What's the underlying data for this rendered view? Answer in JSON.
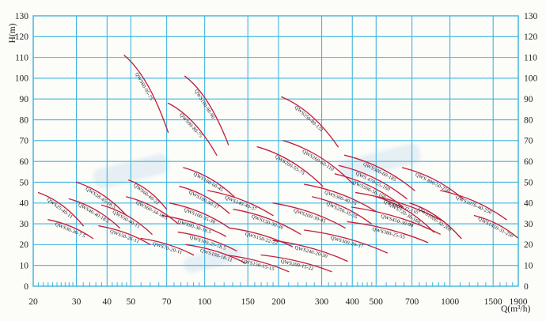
{
  "chart_data": {
    "type": "line",
    "title": "",
    "xlabel": "Q(m³/h)",
    "ylabel": "H(m)",
    "x_scale": "log",
    "xlim": [
      20,
      1900
    ],
    "ylim": [
      0,
      130
    ],
    "y_tick_step": 10,
    "y_axis_labels_both_sides": true,
    "grid": true,
    "x_ticks_major": [
      20,
      30,
      40,
      50,
      70,
      100,
      150,
      200,
      300,
      400,
      500,
      700,
      1000,
      1500,
      1900
    ],
    "x_ticks_minor": [
      21,
      22,
      23,
      24,
      25,
      26,
      27,
      28,
      29,
      32,
      34,
      36,
      38,
      42,
      44,
      46,
      48,
      55,
      60,
      65,
      75,
      80,
      85,
      90,
      95,
      110,
      120,
      130,
      140,
      160,
      170,
      180,
      190,
      220,
      240,
      260,
      280,
      320,
      340,
      360,
      380,
      420,
      440,
      460,
      480,
      550,
      600,
      650,
      750,
      800,
      850,
      900,
      950,
      1100,
      1200,
      1300,
      1400,
      1600,
      1700,
      1800
    ],
    "colors": {
      "grid": "#3fb5dd",
      "curve": "#c2203c",
      "tick_text": "#222222",
      "curve_label_text": "#16161f"
    },
    "series": [
      {
        "name": "QWS25-40-11",
        "q": [
          21,
          32
        ],
        "h": [
          45,
          29
        ]
      },
      {
        "name": "QWS30-30-7.5",
        "q": [
          23,
          35
        ],
        "h": [
          32,
          23
        ]
      },
      {
        "name": "QWS38-45-18.5",
        "q": [
          30,
          48
        ],
        "h": [
          50,
          34
        ]
      },
      {
        "name": "QWS40-40-18.5",
        "q": [
          28,
          45
        ],
        "h": [
          42,
          28
        ]
      },
      {
        "name": "QWS50-40-11",
        "q": [
          38,
          61
        ],
        "h": [
          39,
          25
        ]
      },
      {
        "name": "QWS50-26-11",
        "q": [
          37,
          60
        ],
        "h": [
          29,
          20
        ]
      },
      {
        "name": "QWS60-40-22",
        "q": [
          49,
          70
        ],
        "h": [
          51,
          37
        ]
      },
      {
        "name": "QWS60-34-18.5",
        "q": [
          48,
          78
        ],
        "h": [
          43,
          30
        ]
      },
      {
        "name": "QWS70-20-11",
        "q": [
          55,
          90
        ],
        "h": [
          23,
          15
        ]
      },
      {
        "name": "QWS60-95-75",
        "q": [
          47,
          71
        ],
        "h": [
          111,
          74
        ]
      },
      {
        "name": "QWS100-90-90",
        "q": [
          83,
          125
        ],
        "h": [
          101,
          68
        ]
      },
      {
        "name": "QWS90-80-75",
        "q": [
          71,
          112
        ],
        "h": [
          88,
          63
        ]
      },
      {
        "name": "QWS100-60-45",
        "q": [
          82,
          132
        ],
        "h": [
          57,
          43
        ]
      },
      {
        "name": "QWS100-50-37",
        "q": [
          79,
          126
        ],
        "h": [
          48,
          35
        ]
      },
      {
        "name": "QWS100-35-30",
        "q": [
          72,
          126
        ],
        "h": [
          40,
          28
        ]
      },
      {
        "name": "QWS90-30-18.5",
        "q": [
          67,
          122
        ],
        "h": [
          34,
          24
        ]
      },
      {
        "name": "QWS100-25-18.5",
        "q": [
          78,
          135
        ],
        "h": [
          26,
          17
        ]
      },
      {
        "name": "QWS100-18-11",
        "q": [
          84,
          147
        ],
        "h": [
          20,
          11
        ]
      },
      {
        "name": "QWS140-40-37",
        "q": [
          103,
          190
        ],
        "h": [
          46,
          34
        ]
      },
      {
        "name": "QWS150-30-30",
        "q": [
          131,
          246
        ],
        "h": [
          37,
          25
        ]
      },
      {
        "name": "QWS150-22-22",
        "q": [
          126,
          228
        ],
        "h": [
          28,
          19
        ]
      },
      {
        "name": "QWS150-15-15",
        "q": [
          122,
          220
        ],
        "h": [
          15,
          7
        ]
      },
      {
        "name": "QWS200-55-75",
        "q": [
          164,
          303
        ],
        "h": [
          67,
          48
        ]
      },
      {
        "name": "QWS200-30-45",
        "q": [
          190,
          374
        ],
        "h": [
          40,
          28
        ]
      },
      {
        "name": "QWS240-20-30",
        "q": [
          190,
          382
        ],
        "h": [
          22,
          12
        ]
      },
      {
        "name": "QWS200-15-22",
        "q": [
          170,
          329
        ],
        "h": [
          15,
          7
        ]
      },
      {
        "name": "QWS250-80-132",
        "q": [
          206,
          350
        ],
        "h": [
          91,
          67
        ]
      },
      {
        "name": "QWS260-60-110",
        "q": [
          209,
          404
        ],
        "h": [
          70,
          49
        ]
      },
      {
        "name": "QWS250-35-55",
        "q": [
          275,
          478
        ],
        "h": [
          43,
          30
        ]
      },
      {
        "name": "QWS300-20-37",
        "q": [
          255,
          555
        ],
        "h": [
          27,
          16
        ]
      },
      {
        "name": "QWS300-40-75",
        "q": [
          255,
          498
        ],
        "h": [
          49,
          36
        ]
      },
      {
        "name": "QWS380-25-55",
        "q": [
          382,
          812
        ],
        "h": [
          31,
          21
        ]
      },
      {
        "name": "QWS450-30-90",
        "q": [
          398,
          912
        ],
        "h": [
          38,
          25
        ]
      },
      {
        "name": "QWS480-37-110",
        "q": [
          413,
          946
        ],
        "h": [
          45,
          31
        ]
      },
      {
        "name": "QWS500-60-185",
        "q": [
          372,
          718
        ],
        "h": [
          63,
          46
        ]
      },
      {
        "name": "QWS 470-55-160",
        "q": [
          353,
          667
        ],
        "h": [
          58,
          42
        ]
      },
      {
        "name": "QWS500-50-160",
        "q": [
          340,
          645
        ],
        "h": [
          54,
          38
        ]
      },
      {
        "name": "QWS 800-50-250",
        "q": [
          640,
          1130
        ],
        "h": [
          57,
          42
        ]
      },
      {
        "name": "QWS720-36-160",
        "q": [
          500,
          860
        ],
        "h": [
          43,
          26
        ]
      },
      {
        "name": "QWS1000-32-200",
        "q": [
          686,
          1112
        ],
        "h": [
          40,
          23
        ]
      },
      {
        "name": "QWS1070-40-250",
        "q": [
          916,
          1700
        ],
        "h": [
          46,
          32
        ]
      },
      {
        "name": "QWS1450-31-250",
        "q": [
          1258,
          1900
        ],
        "h": [
          34,
          23
        ]
      }
    ]
  }
}
